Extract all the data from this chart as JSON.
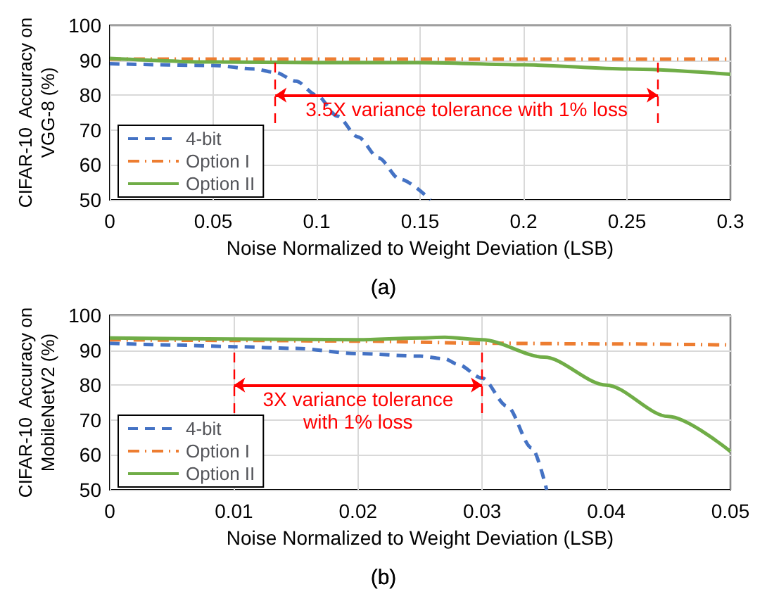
{
  "chart_data": [
    {
      "type": "line",
      "xlabel": "Noise Normalized to Weight Deviation (LSB)",
      "ylabel": "CIFAR-10  Accuracy on\nVGG-8 (%)",
      "xlim": [
        0,
        0.3
      ],
      "xticks": [
        0,
        0.05,
        0.1,
        0.15,
        0.2,
        0.25,
        0.3
      ],
      "ylim": [
        50,
        100
      ],
      "yticks": [
        50,
        60,
        70,
        80,
        90,
        100
      ],
      "grid": true,
      "legend": "bottom left",
      "marker": "none",
      "annotations": [
        "3.5X variance tolerance with 1% loss",
        "(a)"
      ],
      "ref_lines": [
        {
          "axis": "x",
          "value": 0.08,
          "color": "#ff0000",
          "line_style": "dashed"
        },
        {
          "axis": "x",
          "value": 0.265,
          "color": "#ff0000",
          "line_style": "dashed"
        }
      ],
      "series": [
        {
          "name": "4-bit",
          "color": "#4472c4",
          "line_style": "dashed",
          "x": [
            0,
            0.05,
            0.07,
            0.08,
            0.09,
            0.1,
            0.11,
            0.12,
            0.13,
            0.14,
            0.155
          ],
          "values": [
            89,
            88.5,
            87.5,
            86.5,
            84,
            80,
            74,
            68,
            62,
            56,
            50
          ]
        },
        {
          "name": "Option I",
          "color": "#ed7d31",
          "line_style": "dashdot",
          "x": [
            0,
            0.05,
            0.1,
            0.15,
            0.2,
            0.25,
            0.3
          ],
          "values": [
            90.3,
            90.3,
            90.3,
            90.3,
            90.3,
            90.3,
            90.3
          ]
        },
        {
          "name": "Option II",
          "color": "#70ad47",
          "line_style": "solid",
          "x": [
            0,
            0.05,
            0.1,
            0.15,
            0.2,
            0.25,
            0.3
          ],
          "values": [
            90.5,
            89.5,
            89.3,
            89.3,
            88.7,
            87.5,
            86
          ]
        }
      ]
    },
    {
      "type": "line",
      "xlabel": "Noise Normalized to Weight Deviation (LSB)",
      "ylabel": "CIFAR-10  Accuracy on\nMobileNetV2 (%)",
      "xlim": [
        0,
        0.05
      ],
      "xticks": [
        0,
        0.01,
        0.02,
        0.03,
        0.04,
        0.05
      ],
      "ylim": [
        50,
        100
      ],
      "yticks": [
        50,
        60,
        70,
        80,
        90,
        100
      ],
      "grid": true,
      "legend": "bottom left",
      "marker": "none",
      "annotations": [
        "3X variance tolerance\nwith 1% loss",
        "(b)"
      ],
      "ref_lines": [
        {
          "axis": "x",
          "value": 0.01,
          "color": "#ff0000",
          "line_style": "dashed"
        },
        {
          "axis": "x",
          "value": 0.03,
          "color": "#ff0000",
          "line_style": "dashed"
        }
      ],
      "series": [
        {
          "name": "4-bit",
          "color": "#4472c4",
          "line_style": "dashed",
          "x": [
            0,
            0.005,
            0.01,
            0.015,
            0.02,
            0.025,
            0.027,
            0.028,
            0.03,
            0.032,
            0.034,
            0.0352
          ],
          "values": [
            92,
            91.5,
            91,
            90.5,
            89,
            88.3,
            87.5,
            86,
            82,
            74,
            62,
            50
          ]
        },
        {
          "name": "Option I",
          "color": "#ed7d31",
          "line_style": "dashdot",
          "x": [
            0,
            0.01,
            0.02,
            0.03,
            0.04,
            0.05
          ],
          "values": [
            93,
            92.8,
            92.6,
            92,
            91.8,
            91.5
          ]
        },
        {
          "name": "Option II",
          "color": "#70ad47",
          "line_style": "solid",
          "x": [
            0,
            0.01,
            0.02,
            0.025,
            0.027,
            0.03,
            0.035,
            0.04,
            0.045,
            0.05
          ],
          "values": [
            93.5,
            93.2,
            93,
            93.5,
            93.7,
            93,
            88,
            80,
            71,
            61
          ]
        }
      ]
    }
  ]
}
